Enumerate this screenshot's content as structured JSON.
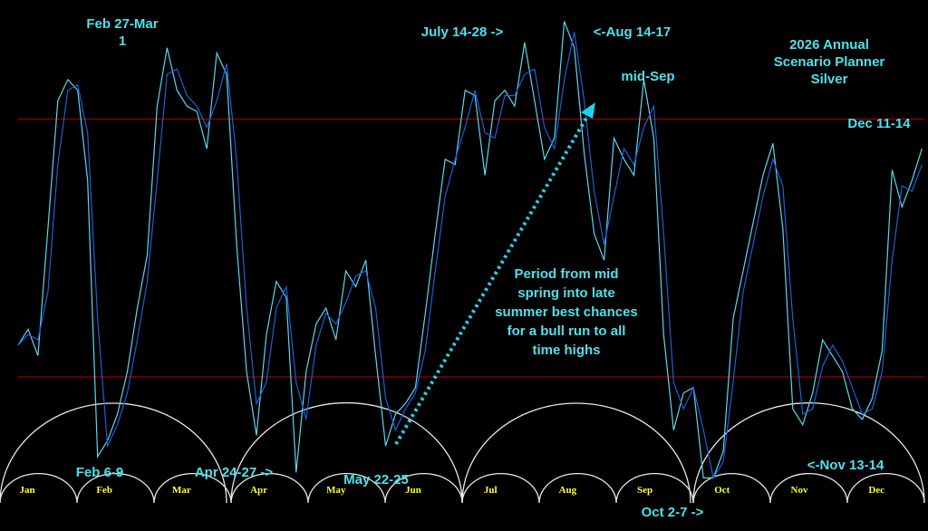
{
  "chart_data": {
    "type": "line",
    "title": "2026 Annual Scenario Planner Silver",
    "months": [
      "Jan",
      "Feb",
      "Mar",
      "Apr",
      "May",
      "Jun",
      "Jul",
      "Aug",
      "Sep",
      "Oct",
      "Nov",
      "Dec"
    ],
    "xlim": [
      0,
      365
    ],
    "ylim": [
      0,
      100
    ],
    "x": [
      0,
      4,
      8,
      12,
      16,
      20,
      24,
      28,
      32,
      36,
      40,
      44,
      48,
      52,
      56,
      60,
      64,
      68,
      72,
      76,
      80,
      84,
      88,
      92,
      96,
      100,
      104,
      108,
      112,
      116,
      120,
      124,
      128,
      132,
      136,
      140,
      144,
      148,
      152,
      156,
      160,
      164,
      168,
      172,
      176,
      180,
      184,
      188,
      192,
      196,
      200,
      204,
      208,
      212,
      216,
      220,
      224,
      228,
      232,
      236,
      240,
      244,
      248,
      252,
      256,
      260,
      264,
      268,
      272,
      276,
      280,
      284,
      288,
      292,
      296,
      300,
      304,
      308,
      312,
      316,
      320,
      324,
      328,
      332,
      336,
      340,
      344,
      348,
      352,
      356,
      360,
      364
    ],
    "series": [
      {
        "color": "#5ad8f0",
        "values": [
          35,
          38,
          33,
          57,
          81,
          85,
          83,
          66,
          14,
          17,
          22,
          30,
          42,
          52,
          80,
          91,
          83,
          80,
          79,
          72,
          90,
          86,
          54,
          30,
          18,
          37,
          47,
          44,
          11,
          30,
          39,
          42,
          36,
          49,
          46,
          51,
          33,
          16,
          22,
          24,
          27,
          41,
          56,
          70,
          69,
          83,
          82,
          67,
          81,
          83,
          80,
          92,
          81,
          70,
          74,
          96,
          91,
          71,
          56,
          51,
          74,
          70,
          67,
          85,
          74,
          37,
          19,
          26,
          27,
          10,
          10,
          15,
          40,
          49,
          58,
          67,
          73,
          57,
          23,
          20,
          26,
          36,
          33,
          30,
          23,
          21,
          25,
          34,
          68,
          61,
          66,
          72
        ]
      },
      {
        "color": "#1f5fd6",
        "values": [
          35,
          37,
          36,
          45,
          69,
          83,
          84,
          75,
          40,
          16,
          20,
          26,
          36,
          47,
          66,
          86,
          87,
          82,
          80,
          76,
          81,
          88,
          70,
          42,
          24,
          28,
          42,
          46,
          28,
          21,
          35,
          41,
          39,
          43,
          48,
          49,
          42,
          25,
          19,
          23,
          26,
          34,
          49,
          63,
          70,
          76,
          83,
          75,
          74,
          82,
          82,
          86,
          87,
          76,
          72,
          85,
          94,
          81,
          64,
          54,
          63,
          72,
          69,
          76,
          80,
          56,
          28,
          23,
          27,
          19,
          10,
          13,
          28,
          45,
          54,
          63,
          70,
          65,
          40,
          22,
          23,
          31,
          35,
          32,
          27,
          22,
          23,
          30,
          51,
          65,
          64,
          69
        ]
      }
    ],
    "hlines": [
      77.6,
      29
    ],
    "hline_color": "#c00000",
    "annotations": [
      "Feb 27-Mar 1",
      "July 14-28 ->",
      "<-Aug 14-17",
      "mid-Sep",
      "Dec 11-14",
      "Feb 6-9",
      "Apr 24-27 ->",
      "May 22-25",
      "Oct 2-7 ->",
      "<-Nov 13-14",
      "Period from mid spring into late summer best chances for a bull run to all time highs"
    ]
  }
}
